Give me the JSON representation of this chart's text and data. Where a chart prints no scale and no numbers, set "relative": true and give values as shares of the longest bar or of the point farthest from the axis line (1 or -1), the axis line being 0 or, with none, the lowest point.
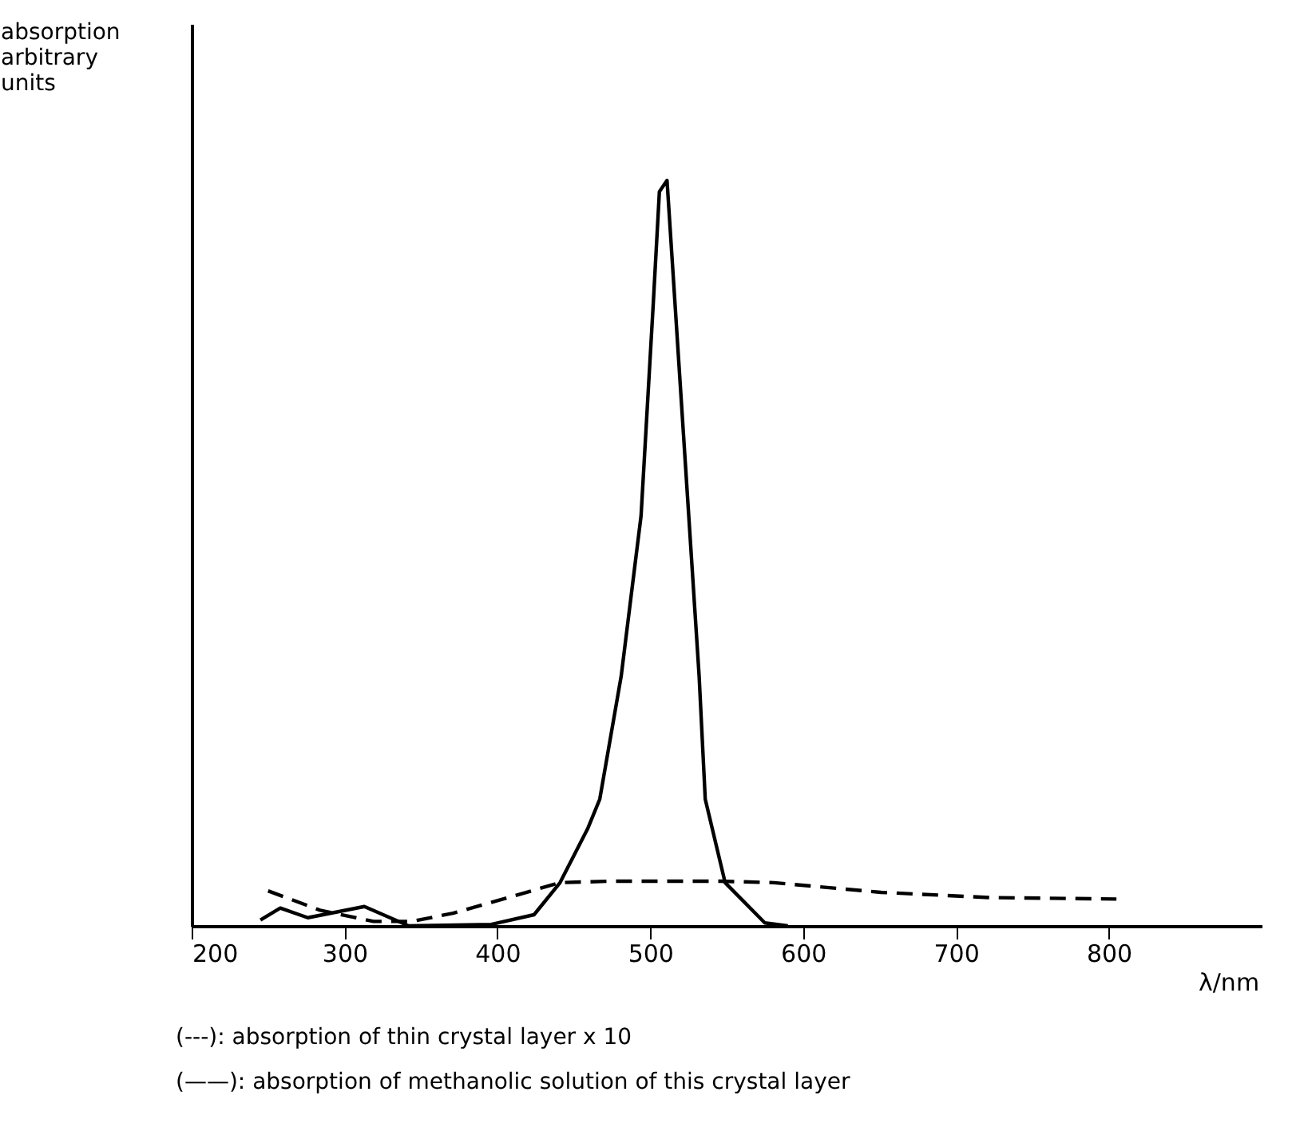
{
  "chart_data": {
    "type": "line",
    "relative": true,
    "xlabel": "λ/nm",
    "ylabel": "absorption\narbitrary\nunits",
    "xlim": [
      200,
      900
    ],
    "xticks": [
      200,
      300,
      400,
      500,
      600,
      700,
      800
    ],
    "grid": false,
    "series": [
      {
        "color": "#000000",
        "line_style": "dashed",
        "x": [
          250,
          284,
          319,
          344,
          371,
          407,
          441,
          474,
          528,
          546,
          581,
          651,
          722,
          805
        ],
        "values": [
          0.047,
          0.021,
          0.006,
          0.006,
          0.017,
          0.038,
          0.058,
          0.06,
          0.06,
          0.06,
          0.058,
          0.045,
          0.038,
          0.036
        ]
      },
      {
        "color": "#000000",
        "line_style": "solid",
        "x": [
          245,
          258,
          276,
          313,
          342,
          396,
          424,
          441,
          459,
          467,
          481,
          494,
          502,
          506,
          511,
          514,
          523,
          532,
          536,
          549,
          575,
          590
        ],
        "values": [
          0.008,
          0.024,
          0.011,
          0.026,
          0,
          0.002,
          0.015,
          0.058,
          0.13,
          0.17,
          0.335,
          0.55,
          0.835,
          0.985,
          1.0,
          0.905,
          0.62,
          0.335,
          0.17,
          0.058,
          0.004,
          0
        ]
      }
    ],
    "annotations": [
      "(---): absorption of thin crystal layer x 10",
      "(——): absorption of methanolic solution of this crystal layer"
    ]
  }
}
